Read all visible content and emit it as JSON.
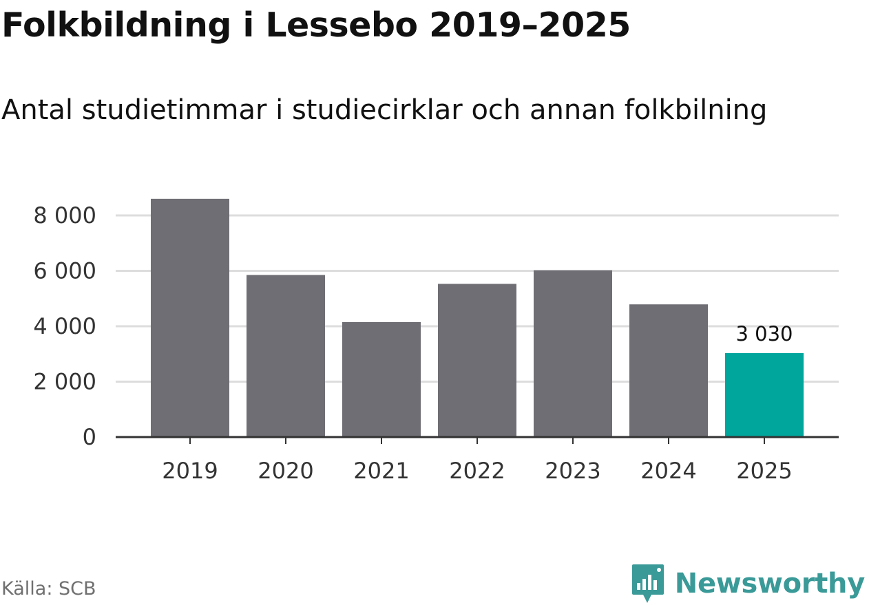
{
  "title": "Folkbildning i Lessebo 2019–2025",
  "subtitle": "Antal studietimmar i studiecirklar och annan folkbilning",
  "source": "Källa: SCB",
  "brand": {
    "name": "Newsworthy",
    "icon": "newsworthy-logo-icon"
  },
  "colors": {
    "bar": "#6f6e74",
    "highlight": "#00a59c",
    "grid": "#dddddd",
    "axis": "#333333",
    "brand": "#3a9a98"
  },
  "chart_data": {
    "type": "bar",
    "title": "Folkbildning i Lessebo 2019–2025",
    "subtitle": "Antal studietimmar i studiecirklar och annan folkbilning",
    "xlabel": "",
    "ylabel": "",
    "categories": [
      "2019",
      "2020",
      "2021",
      "2022",
      "2023",
      "2024",
      "2025"
    ],
    "values": [
      8600,
      5850,
      4150,
      5530,
      6020,
      4790,
      3030
    ],
    "ylim": [
      0,
      8600
    ],
    "yticks": [
      0,
      2000,
      4000,
      6000,
      8000
    ],
    "ytick_labels": [
      "0",
      "2 000",
      "4 000",
      "6 000",
      "8 000"
    ],
    "highlight_index": 6,
    "data_labels": [
      {
        "index": 6,
        "text": "3 030"
      }
    ],
    "grid": true,
    "legend": "none"
  }
}
